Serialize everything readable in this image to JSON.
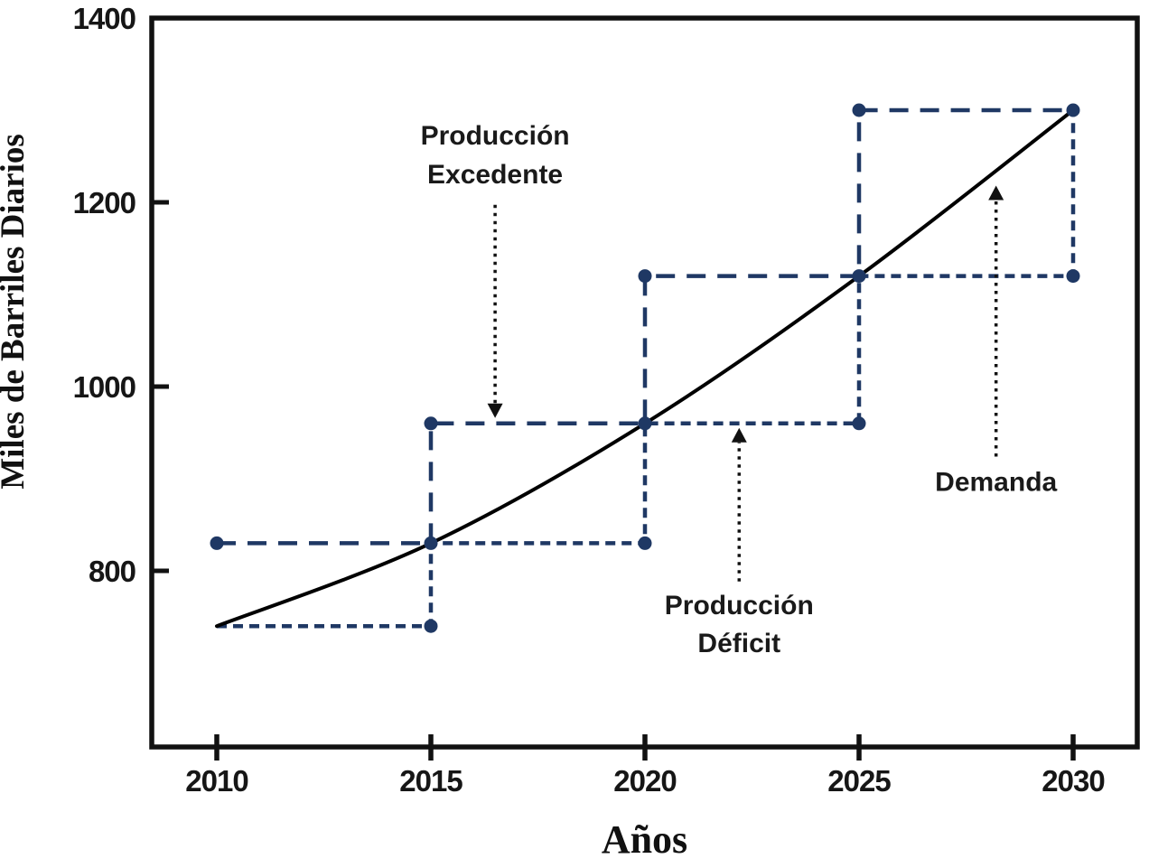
{
  "figure": {
    "background_color": "#ffffff",
    "frame_color": "#111111"
  },
  "chart_data": {
    "type": "line",
    "title": "",
    "xlabel": "Años",
    "ylabel": "Miles de Barriles Diarios",
    "x_ticks": [
      "2010",
      "2015",
      "2020",
      "2025",
      "2030"
    ],
    "x_tick_years": [
      2010,
      2015,
      2020,
      2025,
      2030
    ],
    "y_ticks": [
      "800",
      "1000",
      "1200",
      "1400"
    ],
    "y_tick_values": [
      800,
      1000,
      1200,
      1400
    ],
    "y_tick_values_with_marks": [
      800,
      1000,
      1200
    ],
    "xlim": [
      2008.5,
      2031.5
    ],
    "ylim": [
      609,
      1400
    ],
    "grid": false,
    "legend_position": "none",
    "colors": {
      "axis": "#111111",
      "production_lines": "#1f3864",
      "demand_line": "#000000",
      "annotation_arrow": "#111111"
    },
    "series": [
      {
        "name": "Demanda",
        "style": "solid-smooth",
        "color": "#000000",
        "x": [
          2010,
          2015,
          2020,
          2025,
          2030
        ],
        "values": [
          740,
          830,
          960,
          1120,
          1300
        ]
      },
      {
        "name": "Producción Excedente",
        "style": "long-dash-step",
        "color": "#1f3864",
        "points": [
          [
            2010,
            830
          ],
          [
            2015,
            830
          ],
          [
            2015,
            960
          ],
          [
            2020,
            960
          ],
          [
            2020,
            1120
          ],
          [
            2025,
            1120
          ],
          [
            2025,
            1300
          ],
          [
            2030,
            1300
          ]
        ]
      },
      {
        "name": "Producción Déficit",
        "style": "short-dash-step",
        "color": "#1f3864",
        "points": [
          [
            2010,
            740
          ],
          [
            2015,
            740
          ],
          [
            2015,
            830
          ],
          [
            2020,
            830
          ],
          [
            2020,
            960
          ],
          [
            2025,
            960
          ],
          [
            2025,
            1120
          ],
          [
            2030,
            1120
          ],
          [
            2030,
            1300
          ]
        ]
      }
    ],
    "markers": [
      [
        2010,
        830
      ],
      [
        2015,
        740
      ],
      [
        2015,
        830
      ],
      [
        2015,
        960
      ],
      [
        2020,
        830
      ],
      [
        2020,
        960
      ],
      [
        2020,
        1120
      ],
      [
        2025,
        960
      ],
      [
        2025,
        1120
      ],
      [
        2025,
        1300
      ],
      [
        2030,
        1120
      ],
      [
        2030,
        1300
      ]
    ],
    "annotations": [
      {
        "id": "excedente",
        "lines": [
          "Producción",
          "Excedente"
        ],
        "arrow": "down",
        "target_year": 2016.5,
        "target_value": 960
      },
      {
        "id": "deficit",
        "lines": [
          "Producción",
          "Déficit"
        ],
        "arrow": "up",
        "target_year": 2022.2,
        "target_value": 960
      },
      {
        "id": "demanda",
        "lines": [
          "Demanda"
        ],
        "arrow": "up",
        "target_year": 2028.2,
        "target_value": 1228
      }
    ]
  }
}
